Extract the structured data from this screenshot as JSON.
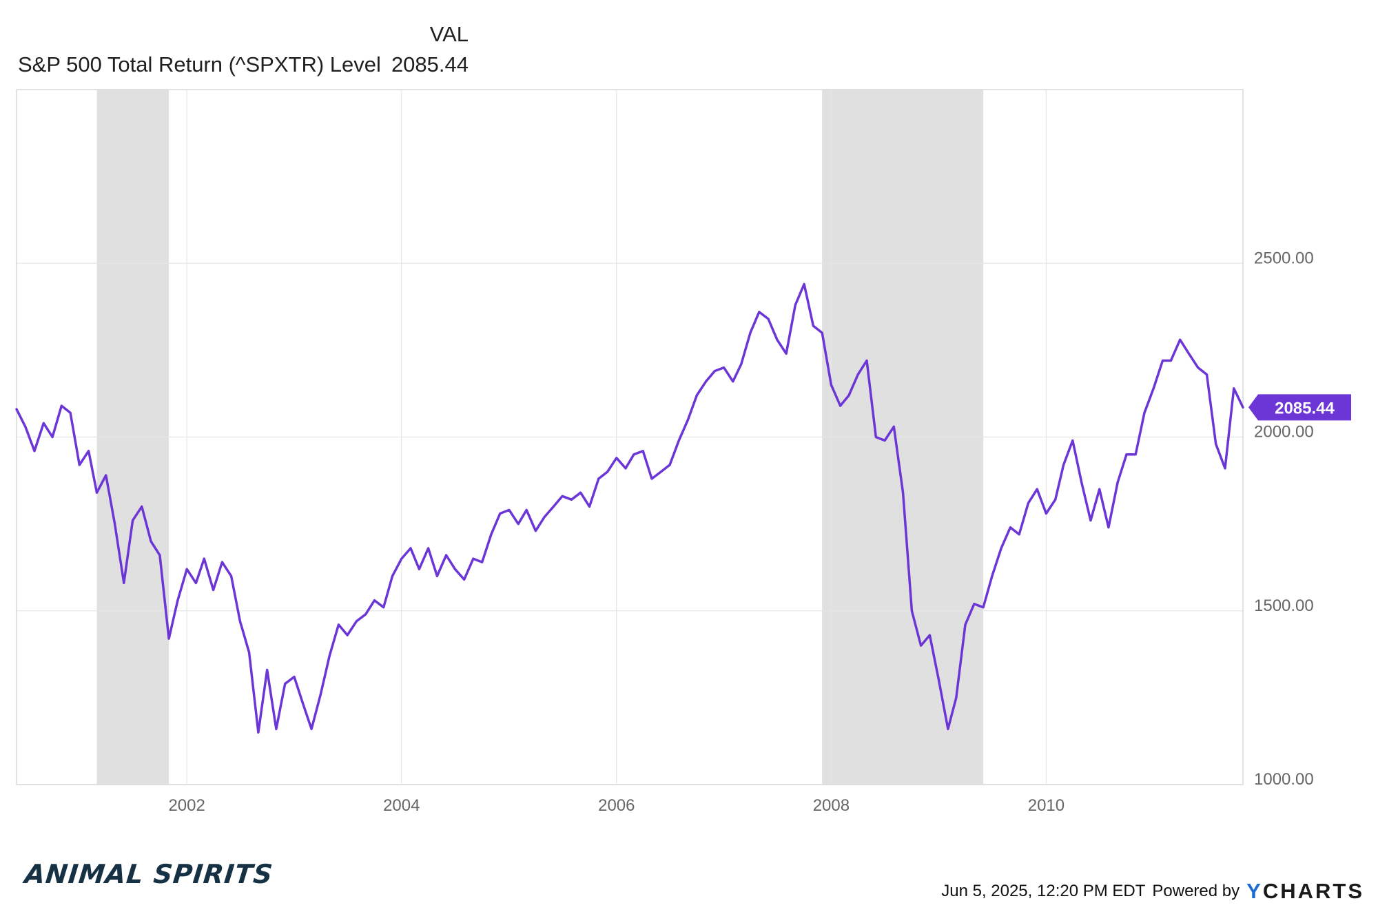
{
  "legend": {
    "column_header": "VAL",
    "series_name": "S&P 500 Total Return (^SPXTR) Level",
    "series_value": "2085.44"
  },
  "chart_data": {
    "type": "line",
    "title": "",
    "xlabel": "",
    "ylabel": "",
    "x_ticks": [
      "2002",
      "2004",
      "2006",
      "2008",
      "2010"
    ],
    "y_ticks": [
      "1000.00",
      "1500.00",
      "2000.00",
      "2500.00"
    ],
    "ylim": [
      1000,
      3000
    ],
    "xlim": [
      "2000-06-01",
      "2011-11-01"
    ],
    "grid": true,
    "line_color": "#6c35d6",
    "recession_color": "#e0e0e0",
    "recessions": [
      {
        "start": "2001-03-01",
        "end": "2001-11-01"
      },
      {
        "start": "2007-12-01",
        "end": "2009-06-01"
      }
    ],
    "last_value_label": "2085.44",
    "series": [
      {
        "name": "S&P 500 Total Return (^SPXTR) Level",
        "points": [
          [
            "2000-06-01",
            2080
          ],
          [
            "2000-07-01",
            2030
          ],
          [
            "2000-08-01",
            1960
          ],
          [
            "2000-09-01",
            2040
          ],
          [
            "2000-10-01",
            2000
          ],
          [
            "2000-11-01",
            2090
          ],
          [
            "2000-12-01",
            2070
          ],
          [
            "2001-01-01",
            1920
          ],
          [
            "2001-02-01",
            1960
          ],
          [
            "2001-03-01",
            1840
          ],
          [
            "2001-04-01",
            1890
          ],
          [
            "2001-05-01",
            1750
          ],
          [
            "2001-06-01",
            1580
          ],
          [
            "2001-07-01",
            1760
          ],
          [
            "2001-08-01",
            1800
          ],
          [
            "2001-09-01",
            1700
          ],
          [
            "2001-10-01",
            1660
          ],
          [
            "2001-11-01",
            1420
          ],
          [
            "2001-12-01",
            1530
          ],
          [
            "2002-01-01",
            1620
          ],
          [
            "2002-02-01",
            1580
          ],
          [
            "2002-03-01",
            1650
          ],
          [
            "2002-04-01",
            1560
          ],
          [
            "2002-05-01",
            1640
          ],
          [
            "2002-06-01",
            1600
          ],
          [
            "2002-07-01",
            1470
          ],
          [
            "2002-08-01",
            1380
          ],
          [
            "2002-09-01",
            1150
          ],
          [
            "2002-10-01",
            1330
          ],
          [
            "2002-11-01",
            1160
          ],
          [
            "2002-12-01",
            1290
          ],
          [
            "2003-01-01",
            1310
          ],
          [
            "2003-02-01",
            1230
          ],
          [
            "2003-03-01",
            1160
          ],
          [
            "2003-04-01",
            1260
          ],
          [
            "2003-05-01",
            1370
          ],
          [
            "2003-06-01",
            1460
          ],
          [
            "2003-07-01",
            1430
          ],
          [
            "2003-08-01",
            1470
          ],
          [
            "2003-09-01",
            1490
          ],
          [
            "2003-10-01",
            1530
          ],
          [
            "2003-11-01",
            1510
          ],
          [
            "2003-12-01",
            1600
          ],
          [
            "2004-01-01",
            1650
          ],
          [
            "2004-02-01",
            1680
          ],
          [
            "2004-03-01",
            1620
          ],
          [
            "2004-04-01",
            1680
          ],
          [
            "2004-05-01",
            1600
          ],
          [
            "2004-06-01",
            1660
          ],
          [
            "2004-07-01",
            1620
          ],
          [
            "2004-08-01",
            1590
          ],
          [
            "2004-09-01",
            1650
          ],
          [
            "2004-10-01",
            1640
          ],
          [
            "2004-11-01",
            1720
          ],
          [
            "2004-12-01",
            1780
          ],
          [
            "2005-01-01",
            1790
          ],
          [
            "2005-02-01",
            1750
          ],
          [
            "2005-03-01",
            1790
          ],
          [
            "2005-04-01",
            1730
          ],
          [
            "2005-05-01",
            1770
          ],
          [
            "2005-06-01",
            1800
          ],
          [
            "2005-07-01",
            1830
          ],
          [
            "2005-08-01",
            1820
          ],
          [
            "2005-09-01",
            1840
          ],
          [
            "2005-10-01",
            1800
          ],
          [
            "2005-11-01",
            1880
          ],
          [
            "2005-12-01",
            1900
          ],
          [
            "2006-01-01",
            1940
          ],
          [
            "2006-02-01",
            1910
          ],
          [
            "2006-03-01",
            1950
          ],
          [
            "2006-04-01",
            1960
          ],
          [
            "2006-05-01",
            1880
          ],
          [
            "2006-06-01",
            1900
          ],
          [
            "2006-07-01",
            1920
          ],
          [
            "2006-08-01",
            1990
          ],
          [
            "2006-09-01",
            2050
          ],
          [
            "2006-10-01",
            2120
          ],
          [
            "2006-11-01",
            2160
          ],
          [
            "2006-12-01",
            2190
          ],
          [
            "2007-01-01",
            2200
          ],
          [
            "2007-02-01",
            2160
          ],
          [
            "2007-03-01",
            2210
          ],
          [
            "2007-04-01",
            2300
          ],
          [
            "2007-05-01",
            2360
          ],
          [
            "2007-06-01",
            2340
          ],
          [
            "2007-07-01",
            2280
          ],
          [
            "2007-08-01",
            2240
          ],
          [
            "2007-09-01",
            2380
          ],
          [
            "2007-10-01",
            2440
          ],
          [
            "2007-11-01",
            2320
          ],
          [
            "2007-12-01",
            2300
          ],
          [
            "2008-01-01",
            2150
          ],
          [
            "2008-02-01",
            2090
          ],
          [
            "2008-03-01",
            2120
          ],
          [
            "2008-04-01",
            2180
          ],
          [
            "2008-05-01",
            2220
          ],
          [
            "2008-06-01",
            2000
          ],
          [
            "2008-07-01",
            1990
          ],
          [
            "2008-08-01",
            2030
          ],
          [
            "2008-09-01",
            1840
          ],
          [
            "2008-10-01",
            1500
          ],
          [
            "2008-11-01",
            1400
          ],
          [
            "2008-12-01",
            1430
          ],
          [
            "2009-01-01",
            1300
          ],
          [
            "2009-02-01",
            1160
          ],
          [
            "2009-03-01",
            1250
          ],
          [
            "2009-04-01",
            1460
          ],
          [
            "2009-05-01",
            1520
          ],
          [
            "2009-06-01",
            1510
          ],
          [
            "2009-07-01",
            1600
          ],
          [
            "2009-08-01",
            1680
          ],
          [
            "2009-09-01",
            1740
          ],
          [
            "2009-10-01",
            1720
          ],
          [
            "2009-11-01",
            1810
          ],
          [
            "2009-12-01",
            1850
          ],
          [
            "2010-01-01",
            1780
          ],
          [
            "2010-02-01",
            1820
          ],
          [
            "2010-03-01",
            1920
          ],
          [
            "2010-04-01",
            1990
          ],
          [
            "2010-05-01",
            1870
          ],
          [
            "2010-06-01",
            1760
          ],
          [
            "2010-07-01",
            1850
          ],
          [
            "2010-08-01",
            1740
          ],
          [
            "2010-09-01",
            1870
          ],
          [
            "2010-10-01",
            1950
          ],
          [
            "2010-11-01",
            1950
          ],
          [
            "2010-12-01",
            2070
          ],
          [
            "2011-01-01",
            2140
          ],
          [
            "2011-02-01",
            2220
          ],
          [
            "2011-03-01",
            2220
          ],
          [
            "2011-04-01",
            2280
          ],
          [
            "2011-05-01",
            2240
          ],
          [
            "2011-06-01",
            2200
          ],
          [
            "2011-07-01",
            2180
          ],
          [
            "2011-08-01",
            1980
          ],
          [
            "2011-09-01",
            1910
          ],
          [
            "2011-10-01",
            2140
          ],
          [
            "2011-11-01",
            2085.44
          ]
        ]
      }
    ]
  },
  "footer": {
    "brand": "ANIMAL SPIRITS",
    "timestamp": "Jun 5, 2025, 12:20 PM EDT",
    "powered_by": "Powered by",
    "logo": "YCHARTS"
  }
}
